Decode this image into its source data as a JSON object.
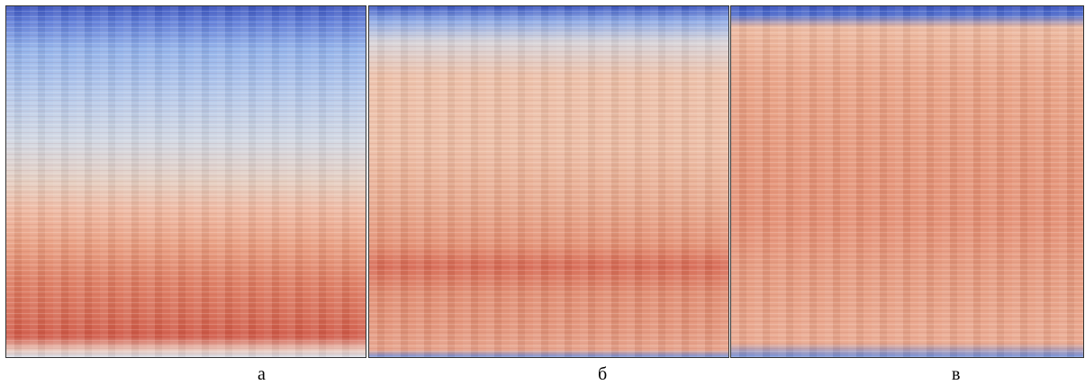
{
  "panels": [
    {
      "label": "а"
    },
    {
      "label": "б"
    },
    {
      "label": "в"
    }
  ]
}
